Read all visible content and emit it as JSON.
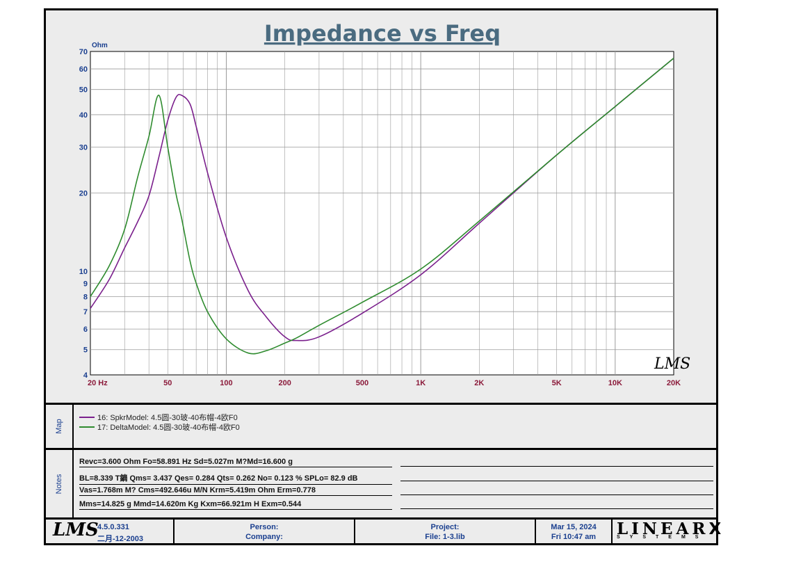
{
  "chart_data": {
    "type": "line",
    "title": "Impedance vs Freq",
    "ylabel": "Ohm",
    "xscale": "log",
    "yscale": "log",
    "xlim": [
      20,
      20000
    ],
    "ylim": [
      4,
      70
    ],
    "grid": true,
    "x_tick_labels": [
      "20 Hz",
      "50",
      "100",
      "200",
      "500",
      "1K",
      "2K",
      "5K",
      "10K",
      "20K"
    ],
    "y_tick_labels": [
      "4",
      "5",
      "6",
      "7",
      "8",
      "9",
      "10",
      "20",
      "30",
      "40",
      "50",
      "60",
      "70"
    ],
    "watermark": "LMS",
    "colors": {
      "series1": "#7a1f8c",
      "series2": "#2e8b2e",
      "title": "#4a6b80",
      "axis": "#1a3f8f",
      "xtick": "#8b1a3a"
    },
    "x": [
      20,
      25,
      30,
      35,
      40,
      45,
      50,
      55,
      58.9,
      65,
      70,
      80,
      100,
      130,
      160,
      200,
      230,
      300,
      500,
      1000,
      2000,
      5000,
      10000,
      20000
    ],
    "series": [
      {
        "name": "16: SpkrModel: 4.5圆-30玻-40布帽-4欧F0",
        "values": [
          7.2,
          9.3,
          12.3,
          15.5,
          19.5,
          27.5,
          38,
          46.5,
          47.5,
          44,
          36,
          24,
          13.5,
          8.4,
          6.7,
          5.6,
          5.42,
          5.6,
          6.9,
          9.7,
          15.3,
          28,
          43,
          66
        ]
      },
      {
        "name": "17: DeltaModel: 4.5圆-30玻-40布帽-4欧F0",
        "values": [
          8.0,
          10.5,
          14.5,
          23,
          33,
          47.5,
          30,
          20,
          16,
          11,
          9.0,
          7.0,
          5.5,
          4.85,
          4.95,
          5.3,
          5.55,
          6.2,
          7.6,
          10.2,
          15.6,
          28,
          43,
          66
        ]
      }
    ]
  },
  "map": {
    "label": "Map"
  },
  "notes": {
    "label": "Notes",
    "lines": [
      "Revc=3.600 Ohm  Fo=58.891 Hz  Sd=5.027m M?Md=16.600 g",
      "BL=8.339 T鏑  Qms= 3.437  Qes= 0.284  Qts= 0.262  No= 0.123 %  SPLo= 82.9 dB",
      "Vas=1.768m M? Cms=492.646u M/N  Krm=5.419m Ohm  Erm=0.778",
      "Mms=14.825 g  Mmd=14.620m Kg  Kxm=66.921m H  Exm=0.544"
    ]
  },
  "footer": {
    "logo": "LMS",
    "version": "4.5.0.331",
    "build_date": "二月-12-2003",
    "person_label": "Person:",
    "company_label": "Company:",
    "project_label": "Project:",
    "file_label": "File: 1-3.lib",
    "date": "Mar 15, 2024",
    "time": "Fri 10:47 am",
    "brand_top": "LINEAR",
    "brand_x": "X",
    "brand_bottom": "SYSTEMS"
  }
}
